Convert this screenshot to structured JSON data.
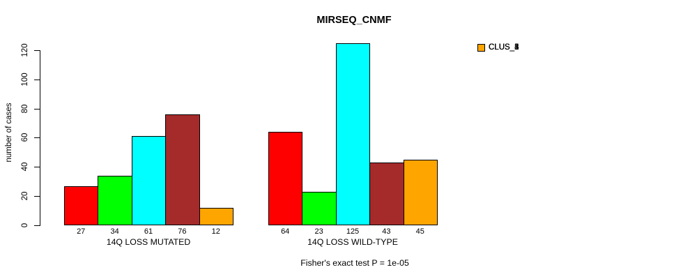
{
  "title": "MIRSEQ_CNMF",
  "footnote": "Fisher's exact test P = 1e-05",
  "chart_data": {
    "type": "bar",
    "title": "MIRSEQ_CNMF",
    "xlabel": "",
    "ylabel": "number of cases",
    "ylim": [
      0,
      120
    ],
    "yticks": [
      0,
      20,
      40,
      60,
      80,
      100,
      120
    ],
    "grid": false,
    "legend_position": "right",
    "categories": [
      "14Q LOSS MUTATED",
      "14Q LOSS WILD-TYPE"
    ],
    "series": [
      {
        "name": "CLUS_1",
        "color": "#FF0000",
        "values": [
          27,
          64
        ]
      },
      {
        "name": "CLUS_2",
        "color": "#00FF00",
        "values": [
          34,
          23
        ]
      },
      {
        "name": "CLUS_3",
        "color": "#00FFFF",
        "values": [
          61,
          125
        ]
      },
      {
        "name": "CLUS_4",
        "color": "#A52A2A",
        "values": [
          76,
          43
        ]
      },
      {
        "name": "CLUS_5",
        "color": "#FFA500",
        "values": [
          12,
          45
        ]
      }
    ],
    "bar_value_labels": [
      [
        "27",
        "34",
        "61",
        "76",
        "12"
      ],
      [
        "64",
        "23",
        "125",
        "43",
        "45"
      ]
    ],
    "annotation": "Fisher's exact test P = 1e-05"
  }
}
